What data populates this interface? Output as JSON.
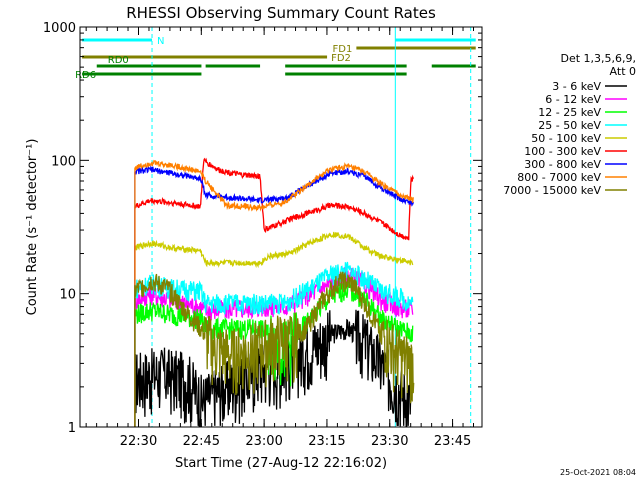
{
  "chart_data": {
    "type": "line",
    "title": "RHESSI Observing Summary Count Rates",
    "xlabel": "Start Time (27-Aug-12 22:16:02)",
    "ylabel": "Count Rate (s⁻¹ detector⁻¹)",
    "yscale": "log",
    "ylim": [
      1,
      1000
    ],
    "xlim_minutes_after_22_16_02": [
      0,
      96
    ],
    "x_ticks": [
      {
        "label": "22:30",
        "minute": 13.97
      },
      {
        "label": "22:45",
        "minute": 28.97
      },
      {
        "label": "23:00",
        "minute": 43.97
      },
      {
        "label": "23:15",
        "minute": 58.97
      },
      {
        "label": "23:30",
        "minute": 73.97
      },
      {
        "label": "23:45",
        "minute": 88.97
      }
    ],
    "y_ticks": [
      {
        "label": "1",
        "value": 1
      },
      {
        "label": "10",
        "value": 10
      },
      {
        "label": "100",
        "value": 100
      },
      {
        "label": "1000",
        "value": 1000
      }
    ],
    "legend_placement": "right",
    "legend_header": [
      "Det 1,3,5,6,9,",
      "Att 0"
    ],
    "timestamp": "25-Oct-2021 08:04",
    "vertical_markers": [
      {
        "minute": 0.0,
        "style": "solid",
        "color": "#00ffff"
      },
      {
        "minute": 17.2,
        "style": "dashed",
        "color": "#00ffff"
      },
      {
        "minute": 75.3,
        "style": "solid",
        "color": "#00ffff"
      },
      {
        "minute": 93.3,
        "style": "dashed",
        "color": "#00ffff"
      }
    ],
    "flags": [
      {
        "label": "N",
        "color": "#00ffff",
        "row": 0,
        "segments": [
          [
            0.5,
            17.2
          ],
          [
            75.3,
            94.5
          ]
        ]
      },
      {
        "label": "FD1",
        "color": "#808000",
        "row": 1,
        "segments": [
          [
            66.0,
            94.5
          ]
        ]
      },
      {
        "label": "FD2",
        "color": "#808000",
        "row": 2,
        "segments": [
          [
            0.5,
            59.0
          ]
        ]
      },
      {
        "label": "RD0",
        "color": "#008000",
        "row": 3,
        "segments": [
          [
            4.0,
            29.0
          ],
          [
            30.0,
            43.0
          ],
          [
            49.0,
            78.0
          ],
          [
            84.0,
            94.5
          ]
        ]
      },
      {
        "label": "RD6",
        "color": "#008000",
        "row": 4,
        "segments": [
          [
            0.5,
            29.0
          ],
          [
            49.0,
            78.0
          ]
        ]
      }
    ],
    "series": [
      {
        "name": "3 - 6 keV",
        "color": "#000000",
        "points": [
          [
            13.1,
            2.4
          ],
          [
            20.0,
            2.6
          ],
          [
            26.0,
            2.3
          ],
          [
            29.0,
            1.6
          ],
          [
            36.0,
            2.1
          ],
          [
            43.0,
            2.8
          ],
          [
            49.0,
            3.1
          ],
          [
            55.0,
            4.0
          ],
          [
            60.0,
            5.0
          ],
          [
            64.0,
            5.5
          ],
          [
            68.0,
            4.5
          ],
          [
            72.0,
            3.0
          ],
          [
            76.0,
            2.0
          ],
          [
            79.5,
            1.5
          ]
        ]
      },
      {
        "name": "6 - 12 keV",
        "color": "#ff00ff",
        "points": [
          [
            13.1,
            9.0
          ],
          [
            17.0,
            10.0
          ],
          [
            22.0,
            9.0
          ],
          [
            28.8,
            8.0
          ],
          [
            30.0,
            7.5
          ],
          [
            43.0,
            8.0
          ],
          [
            49.0,
            8.0
          ],
          [
            55.0,
            10.0
          ],
          [
            60.0,
            12.0
          ],
          [
            64.0,
            14.0
          ],
          [
            68.0,
            12.0
          ],
          [
            72.0,
            9.0
          ],
          [
            76.0,
            8.0
          ],
          [
            79.5,
            7.5
          ]
        ]
      },
      {
        "name": "12 - 25 keV",
        "color": "#00ff00",
        "points": [
          [
            13.1,
            7.0
          ],
          [
            17.0,
            7.5
          ],
          [
            22.0,
            7.0
          ],
          [
            28.8,
            6.5
          ],
          [
            30.0,
            5.5
          ],
          [
            43.0,
            5.5
          ],
          [
            49.0,
            4.0
          ],
          [
            55.0,
            6.5
          ],
          [
            60.0,
            9.5
          ],
          [
            64.0,
            11.0
          ],
          [
            68.0,
            9.0
          ],
          [
            72.0,
            6.5
          ],
          [
            76.0,
            5.5
          ],
          [
            79.5,
            5.0
          ]
        ]
      },
      {
        "name": "25 - 50 keV",
        "color": "#00ffff",
        "points": [
          [
            13.1,
            11.0
          ],
          [
            17.0,
            12.0
          ],
          [
            22.0,
            11.0
          ],
          [
            28.8,
            10.5
          ],
          [
            30.0,
            8.5
          ],
          [
            43.0,
            8.5
          ],
          [
            49.0,
            8.5
          ],
          [
            55.0,
            11.0
          ],
          [
            60.0,
            14.0
          ],
          [
            64.0,
            15.0
          ],
          [
            68.0,
            13.0
          ],
          [
            72.0,
            10.5
          ],
          [
            76.0,
            9.5
          ],
          [
            79.5,
            8.5
          ]
        ]
      },
      {
        "name": "50 - 100 keV",
        "color": "#cccc00",
        "points": [
          [
            13.1,
            22.0
          ],
          [
            17.0,
            24.0
          ],
          [
            22.0,
            22.0
          ],
          [
            28.8,
            21.0
          ],
          [
            30.0,
            17.0
          ],
          [
            43.0,
            17.0
          ],
          [
            45.0,
            19.0
          ],
          [
            50.0,
            20.0
          ],
          [
            55.0,
            24.0
          ],
          [
            60.0,
            28.0
          ],
          [
            64.0,
            27.0
          ],
          [
            68.0,
            22.0
          ],
          [
            72.0,
            19.0
          ],
          [
            76.0,
            18.0
          ],
          [
            79.5,
            17.0
          ]
        ]
      },
      {
        "name": "100 - 300 keV",
        "color": "#ff0000",
        "points": [
          [
            13.1,
            45.0
          ],
          [
            17.0,
            50.0
          ],
          [
            22.0,
            48.0
          ],
          [
            28.8,
            45.0
          ],
          [
            29.5,
            100.0
          ],
          [
            33.0,
            85.0
          ],
          [
            38.0,
            78.0
          ],
          [
            43.0,
            76.0
          ],
          [
            44.0,
            30.0
          ],
          [
            50.0,
            36.0
          ],
          [
            55.0,
            41.0
          ],
          [
            60.0,
            46.0
          ],
          [
            64.0,
            45.0
          ],
          [
            68.0,
            40.0
          ],
          [
            72.0,
            34.0
          ],
          [
            76.0,
            28.0
          ],
          [
            78.5,
            26.0
          ],
          [
            79.0,
            70.0
          ],
          [
            79.8,
            75.0
          ]
        ]
      },
      {
        "name": "300 - 800 keV",
        "color": "#0000ff",
        "points": [
          [
            13.1,
            82.0
          ],
          [
            17.0,
            85.0
          ],
          [
            22.0,
            80.0
          ],
          [
            28.8,
            73.0
          ],
          [
            30.0,
            55.0
          ],
          [
            43.0,
            50.0
          ],
          [
            49.0,
            52.0
          ],
          [
            55.0,
            66.0
          ],
          [
            60.0,
            80.0
          ],
          [
            64.0,
            83.0
          ],
          [
            68.0,
            76.0
          ],
          [
            72.0,
            62.0
          ],
          [
            76.0,
            52.0
          ],
          [
            79.8,
            47.0
          ]
        ]
      },
      {
        "name": "800 - 7000 keV",
        "color": "#ff8000",
        "points": [
          [
            13.1,
            88.0
          ],
          [
            17.0,
            96.0
          ],
          [
            22.0,
            92.0
          ],
          [
            28.8,
            82.0
          ],
          [
            30.0,
            70.0
          ],
          [
            35.0,
            46.0
          ],
          [
            43.0,
            44.0
          ],
          [
            49.0,
            49.0
          ],
          [
            55.0,
            68.0
          ],
          [
            60.0,
            86.0
          ],
          [
            64.0,
            90.0
          ],
          [
            68.0,
            82.0
          ],
          [
            72.0,
            66.0
          ],
          [
            76.0,
            56.0
          ],
          [
            79.8,
            50.0
          ]
        ]
      },
      {
        "name": "7000 - 15000 keV",
        "color": "#808000",
        "points": [
          [
            13.1,
            10.5
          ],
          [
            17.0,
            12.5
          ],
          [
            21.0,
            11.0
          ],
          [
            25.0,
            7.5
          ],
          [
            28.8,
            5.5
          ],
          [
            32.0,
            4.0
          ],
          [
            36.0,
            3.5
          ],
          [
            43.0,
            4.0
          ],
          [
            47.0,
            4.5
          ],
          [
            50.0,
            4.5
          ],
          [
            54.0,
            5.5
          ],
          [
            58.0,
            9.0
          ],
          [
            62.0,
            12.5
          ],
          [
            65.0,
            12.0
          ],
          [
            68.0,
            8.5
          ],
          [
            72.0,
            5.0
          ],
          [
            76.0,
            3.5
          ],
          [
            79.8,
            3.0
          ]
        ]
      }
    ]
  }
}
